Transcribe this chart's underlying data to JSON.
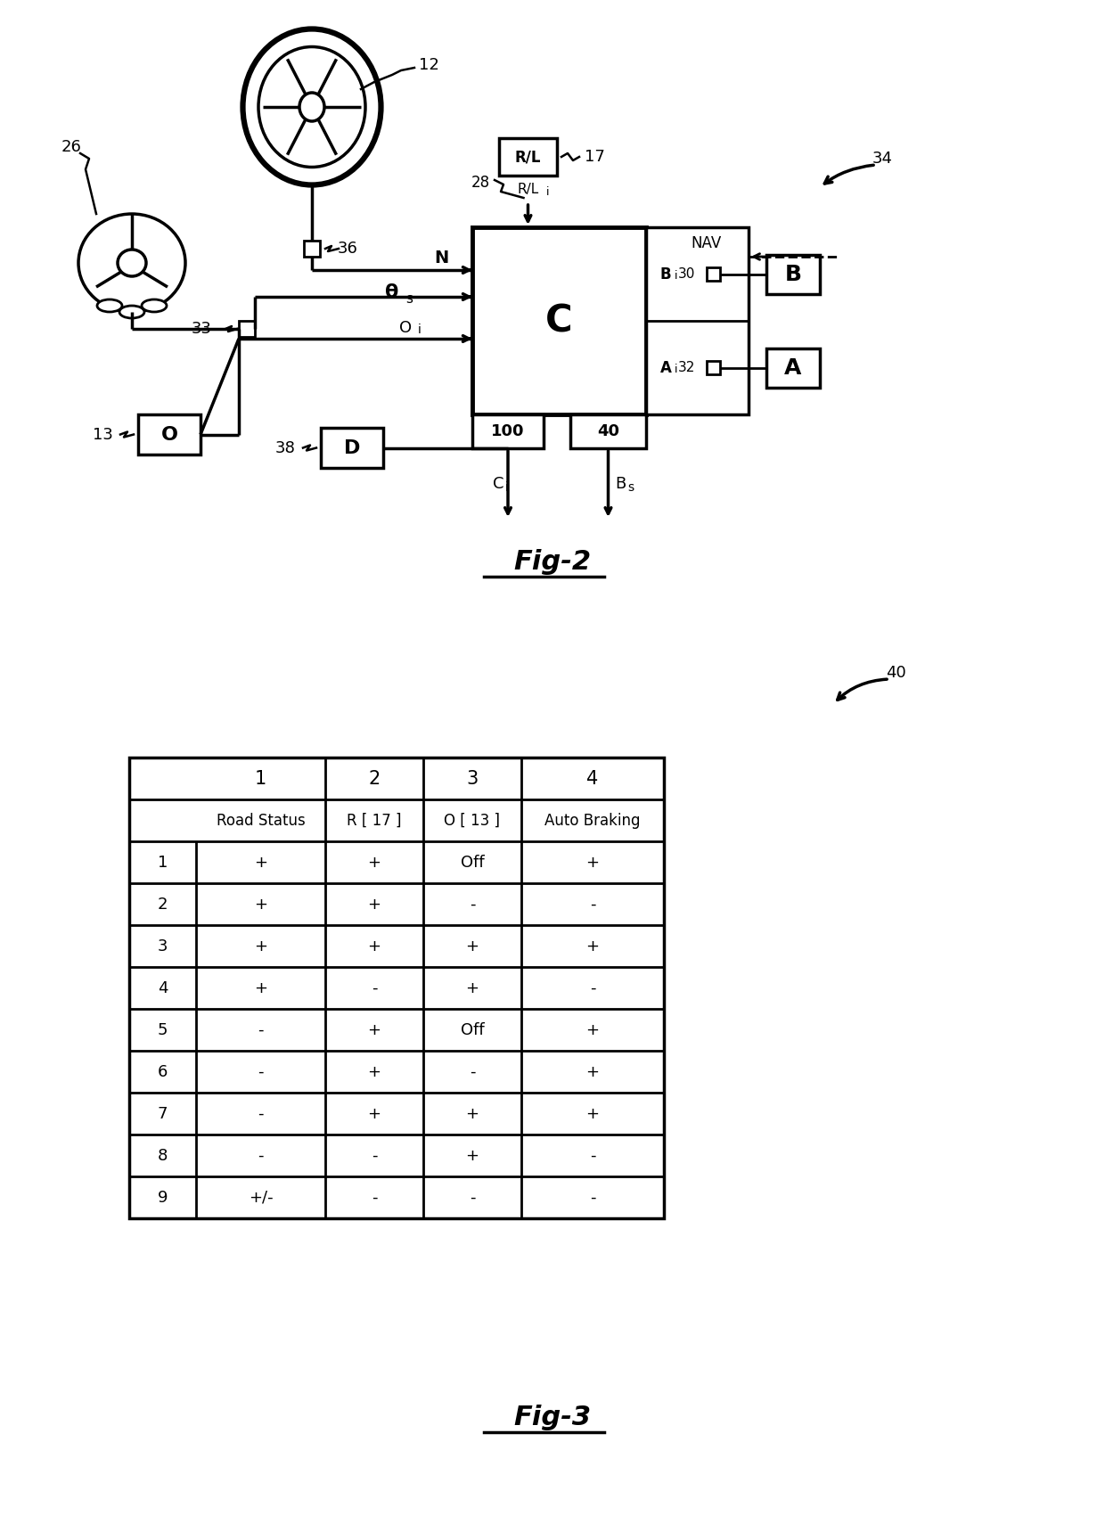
{
  "background_color": "#ffffff",
  "fig_width": 12.4,
  "fig_height": 17.19,
  "fig2_label": "Fig-2",
  "fig3_label": "Fig-3",
  "table_col_headers": [
    "1",
    "2",
    "3",
    "4"
  ],
  "table_col_subheaders": [
    "Road Status",
    "R [ 17 ]",
    "O [ 13 ]",
    "Auto Braking"
  ],
  "table_rows": [
    [
      "1",
      "+",
      "+",
      "Off",
      "+"
    ],
    [
      "2",
      "+",
      "+",
      "-",
      "-"
    ],
    [
      "3",
      "+",
      "+",
      "+",
      "+"
    ],
    [
      "4",
      "+",
      "-",
      "+",
      "-"
    ],
    [
      "5",
      "-",
      "+",
      "Off",
      "+"
    ],
    [
      "6",
      "-",
      "+",
      "-",
      "+"
    ],
    [
      "7",
      "-",
      "+",
      "+",
      "+"
    ],
    [
      "8",
      "-",
      "-",
      "+",
      "-"
    ],
    [
      "9",
      "+/-",
      "-",
      "-",
      "-"
    ]
  ],
  "ref_40_label": "40",
  "ref_34_label": "34",
  "label_26": "26",
  "label_12": "12",
  "label_36": "36",
  "label_33": "33",
  "label_13": "13",
  "label_38": "38",
  "label_28": "28",
  "label_17": "17",
  "label_30": "30",
  "label_32": "32",
  "label_N": "N",
  "label_thetas": "θs",
  "label_Oi": "Oi",
  "label_Ci": "Ci",
  "label_Bs": "Bs",
  "label_RLi": "R/Li",
  "label_NAV": "NAV",
  "label_Bi": "Bi",
  "label_Ai": "Ai",
  "label_C": "C",
  "label_B": "B",
  "label_A": "A",
  "label_RL": "R/L",
  "label_O": "O",
  "label_D": "D",
  "label_100": "100",
  "label_40box": "40"
}
